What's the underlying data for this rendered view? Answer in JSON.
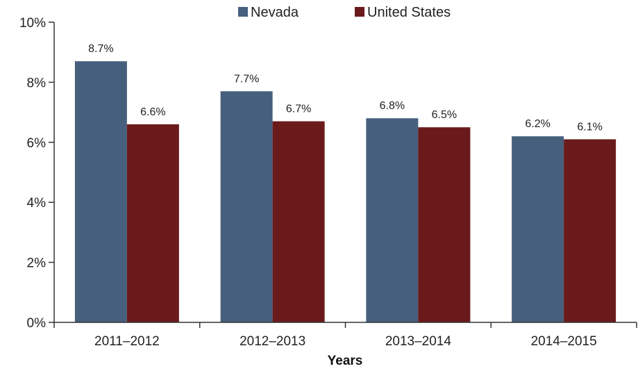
{
  "chart_data": {
    "type": "bar",
    "title": "",
    "xlabel": "Years",
    "ylabel": "",
    "categories": [
      "2011–2012",
      "2012–2013",
      "2013–2014",
      "2014–2015"
    ],
    "series": [
      {
        "name": "Nevada",
        "values": [
          8.7,
          7.7,
          6.8,
          6.2
        ],
        "labels": [
          "8.7%",
          "7.7%",
          "6.8%",
          "6.2%"
        ],
        "color": "#465f7c"
      },
      {
        "name": "United States",
        "values": [
          6.6,
          6.7,
          6.5,
          6.1
        ],
        "labels": [
          "6.6%",
          "6.7%",
          "6.5%",
          "6.1%"
        ],
        "color": "#6b1a1c"
      }
    ],
    "ylim": [
      0,
      10
    ],
    "yticks": [
      "0%",
      "2%",
      "4%",
      "6%",
      "8%",
      "10%"
    ],
    "ytick_values": [
      0,
      2,
      4,
      6,
      8,
      10
    ],
    "grid": false,
    "legend_position": "top-center"
  }
}
